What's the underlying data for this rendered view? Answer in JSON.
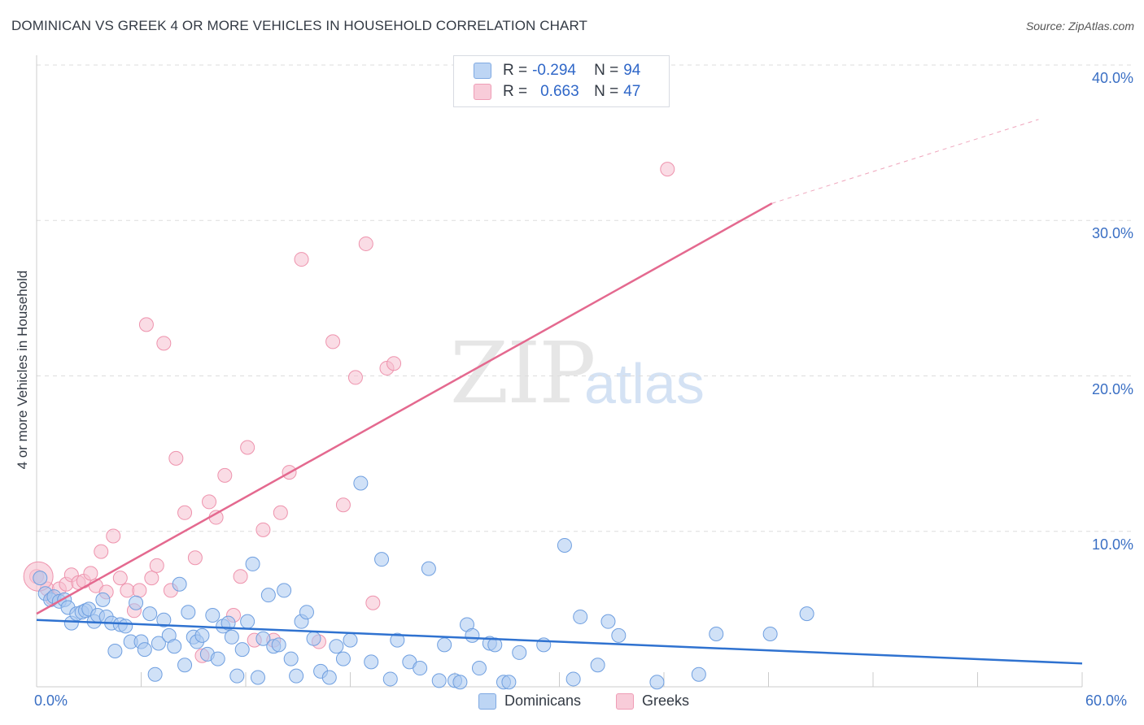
{
  "title": "DOMINICAN VS GREEK 4 OR MORE VEHICLES IN HOUSEHOLD CORRELATION CHART",
  "source": "Source: ZipAtlas.com",
  "watermark": {
    "zip": "ZIP",
    "atlas": "atlas"
  },
  "legend": {
    "r_label": "R =",
    "n_label": "N =",
    "dominicans": {
      "r": "-0.294",
      "n": "94"
    },
    "greeks": {
      "r": "0.663",
      "n": "47"
    }
  },
  "bottom_legend": {
    "dominicans": "Dominicans",
    "greeks": "Greeks"
  },
  "colors": {
    "blue_fill": "#a9c8f0",
    "blue_stroke": "#6f9fe0",
    "blue_line": "#2f72d0",
    "pink_fill": "#f6bfcf",
    "pink_stroke": "#ee93ad",
    "pink_line": "#e4698f",
    "grid": "#dddddd",
    "axis_text": "#3a6fc4"
  },
  "chart_data": {
    "type": "scatter",
    "title": "DOMINICAN VS GREEK 4 OR MORE VEHICLES IN HOUSEHOLD CORRELATION CHART",
    "xlabel": "",
    "ylabel": "4 or more Vehicles in Household",
    "xlim": [
      0,
      60
    ],
    "ylim": [
      0,
      40
    ],
    "x_tick_labels": [
      "0.0%",
      "60.0%"
    ],
    "y_ticks": [
      10,
      20,
      30,
      40
    ],
    "y_tick_labels": [
      "10.0%",
      "20.0%",
      "30.0%",
      "40.0%"
    ],
    "grid": true,
    "series": [
      {
        "name": "Dominicans",
        "r": -0.294,
        "n": 94,
        "trend": {
          "x": [
            0,
            60
          ],
          "y": [
            4.3,
            1.5
          ],
          "dashed_to": 60
        },
        "points": [
          [
            0.2,
            7.0
          ],
          [
            0.5,
            6.0
          ],
          [
            0.8,
            5.6
          ],
          [
            1.0,
            5.8
          ],
          [
            1.3,
            5.5
          ],
          [
            1.6,
            5.6
          ],
          [
            1.8,
            5.1
          ],
          [
            2.0,
            4.1
          ],
          [
            2.3,
            4.7
          ],
          [
            2.6,
            4.8
          ],
          [
            2.8,
            4.9
          ],
          [
            3.0,
            5.0
          ],
          [
            3.3,
            4.2
          ],
          [
            3.5,
            4.6
          ],
          [
            3.8,
            5.6
          ],
          [
            4.0,
            4.5
          ],
          [
            4.3,
            4.1
          ],
          [
            4.5,
            2.3
          ],
          [
            4.8,
            4.0
          ],
          [
            5.1,
            3.9
          ],
          [
            5.4,
            2.9
          ],
          [
            5.7,
            5.4
          ],
          [
            6.0,
            2.9
          ],
          [
            6.2,
            2.4
          ],
          [
            6.5,
            4.7
          ],
          [
            6.8,
            0.8
          ],
          [
            7.0,
            2.8
          ],
          [
            7.3,
            4.3
          ],
          [
            7.6,
            3.3
          ],
          [
            7.9,
            2.6
          ],
          [
            8.2,
            6.6
          ],
          [
            8.5,
            1.4
          ],
          [
            8.7,
            4.8
          ],
          [
            9.0,
            3.2
          ],
          [
            9.2,
            2.9
          ],
          [
            9.5,
            3.3
          ],
          [
            9.8,
            2.1
          ],
          [
            10.1,
            4.6
          ],
          [
            10.4,
            1.8
          ],
          [
            10.7,
            3.9
          ],
          [
            11.0,
            4.1
          ],
          [
            11.2,
            3.2
          ],
          [
            11.5,
            0.7
          ],
          [
            11.8,
            2.4
          ],
          [
            12.1,
            4.2
          ],
          [
            12.4,
            7.9
          ],
          [
            12.7,
            0.6
          ],
          [
            13.0,
            3.1
          ],
          [
            13.3,
            5.9
          ],
          [
            13.6,
            2.6
          ],
          [
            13.9,
            2.7
          ],
          [
            14.2,
            6.2
          ],
          [
            14.6,
            1.8
          ],
          [
            14.9,
            0.7
          ],
          [
            15.2,
            4.2
          ],
          [
            15.5,
            4.8
          ],
          [
            15.9,
            3.1
          ],
          [
            16.3,
            1.0
          ],
          [
            16.8,
            0.6
          ],
          [
            17.2,
            2.6
          ],
          [
            17.6,
            1.8
          ],
          [
            18.0,
            3.0
          ],
          [
            18.6,
            13.1
          ],
          [
            19.2,
            1.6
          ],
          [
            19.8,
            8.2
          ],
          [
            20.3,
            0.5
          ],
          [
            20.7,
            3.0
          ],
          [
            21.4,
            1.6
          ],
          [
            22.0,
            1.2
          ],
          [
            22.5,
            7.6
          ],
          [
            23.1,
            0.4
          ],
          [
            23.4,
            2.7
          ],
          [
            24.0,
            0.4
          ],
          [
            24.3,
            0.3
          ],
          [
            24.7,
            4.0
          ],
          [
            25.0,
            3.3
          ],
          [
            25.4,
            1.2
          ],
          [
            26.0,
            2.8
          ],
          [
            26.3,
            2.7
          ],
          [
            26.8,
            0.3
          ],
          [
            27.1,
            0.3
          ],
          [
            27.7,
            2.2
          ],
          [
            29.1,
            2.7
          ],
          [
            30.3,
            9.1
          ],
          [
            30.8,
            0.5
          ],
          [
            31.2,
            4.5
          ],
          [
            32.2,
            1.4
          ],
          [
            32.8,
            4.2
          ],
          [
            33.4,
            3.3
          ],
          [
            35.6,
            0.3
          ],
          [
            38.0,
            0.8
          ],
          [
            39.0,
            3.4
          ],
          [
            42.1,
            3.4
          ],
          [
            44.2,
            4.7
          ]
        ]
      },
      {
        "name": "Greeks",
        "r": 0.663,
        "n": 47,
        "trend": {
          "x": [
            0,
            42.2
          ],
          "y": [
            4.7,
            31.1
          ],
          "dashed_to_x": 57.5,
          "dashed_to_y": 36.5
        },
        "points": [
          [
            0.0,
            7.1
          ],
          [
            0.6,
            6.3
          ],
          [
            0.9,
            5.7
          ],
          [
            1.3,
            6.3
          ],
          [
            1.7,
            6.6
          ],
          [
            2.0,
            7.2
          ],
          [
            2.4,
            6.7
          ],
          [
            2.7,
            6.8
          ],
          [
            3.1,
            7.3
          ],
          [
            3.4,
            6.5
          ],
          [
            3.7,
            8.7
          ],
          [
            4.0,
            6.1
          ],
          [
            4.4,
            9.7
          ],
          [
            4.8,
            7.0
          ],
          [
            5.2,
            6.2
          ],
          [
            5.6,
            4.9
          ],
          [
            5.9,
            6.2
          ],
          [
            6.3,
            23.3
          ],
          [
            6.6,
            7.0
          ],
          [
            6.9,
            7.8
          ],
          [
            7.3,
            22.1
          ],
          [
            7.7,
            6.2
          ],
          [
            8.0,
            14.7
          ],
          [
            8.5,
            11.2
          ],
          [
            9.1,
            8.3
          ],
          [
            9.5,
            2.0
          ],
          [
            9.9,
            11.9
          ],
          [
            10.3,
            10.9
          ],
          [
            10.8,
            13.6
          ],
          [
            11.3,
            4.6
          ],
          [
            11.7,
            7.1
          ],
          [
            12.1,
            15.4
          ],
          [
            12.5,
            3.0
          ],
          [
            13.0,
            10.1
          ],
          [
            13.6,
            3.0
          ],
          [
            14.0,
            11.2
          ],
          [
            14.5,
            13.8
          ],
          [
            15.2,
            27.5
          ],
          [
            16.2,
            2.9
          ],
          [
            17.0,
            22.2
          ],
          [
            17.6,
            11.7
          ],
          [
            18.3,
            19.9
          ],
          [
            18.9,
            28.5
          ],
          [
            19.3,
            5.4
          ],
          [
            20.1,
            20.5
          ],
          [
            20.5,
            20.8
          ],
          [
            36.2,
            33.3
          ]
        ]
      }
    ]
  }
}
